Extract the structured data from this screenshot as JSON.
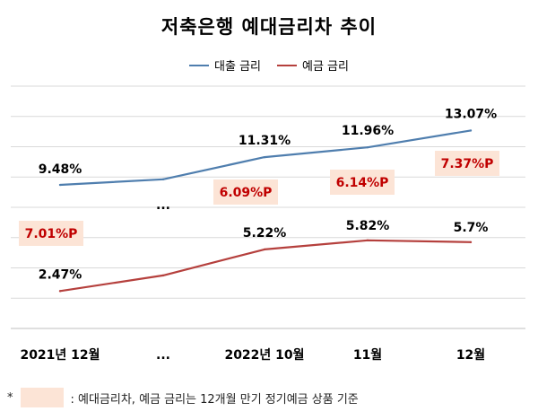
{
  "chart_data": {
    "type": "line",
    "title": "저축은행 예대금리차 추이",
    "categories": [
      "2021년 12월",
      "...",
      "2022년 10월",
      "11월",
      "12월"
    ],
    "series": [
      {
        "name": "대출 금리",
        "color": "#4f7eae",
        "values": [
          9.48,
          9.85,
          11.31,
          11.96,
          13.07
        ],
        "labels": [
          "9.48%",
          "",
          "11.31%",
          "11.96%",
          "13.07%"
        ]
      },
      {
        "name": "예금 금리",
        "color": "#b5403d",
        "values": [
          2.47,
          3.5,
          5.22,
          5.82,
          5.7
        ],
        "labels": [
          "2.47%",
          "",
          "5.22%",
          "5.82%",
          "5.7%"
        ]
      }
    ],
    "spreads": [
      "7.01%P",
      "",
      "6.09%P",
      "6.14%P",
      "7.37%P"
    ],
    "gap_marker": "...",
    "ylim": [
      0,
      16
    ],
    "grid": true,
    "legend": "top-center",
    "spread_box_color": "#fce4d6",
    "spread_text_color": "#c00000"
  },
  "footnote": {
    "asterisk": "*",
    "text": ": 예대금리차, 예금 금리는 12개월 만기 정기예금 상품 기준"
  }
}
